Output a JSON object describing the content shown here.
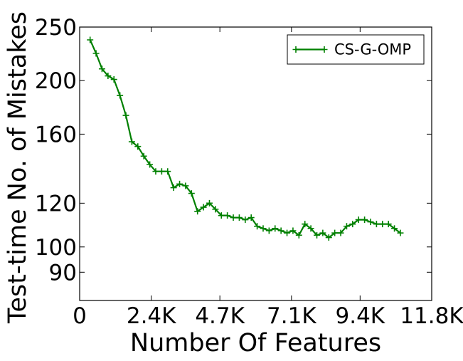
{
  "chart_data": {
    "type": "line",
    "title": "",
    "xlabel": "Number Of Features",
    "ylabel": "Test-time No. of Mistakes",
    "xlim": [
      0,
      11800
    ],
    "ylim": [
      80,
      250
    ],
    "x_scale": "linear",
    "y_scale": "log",
    "x_ticks": [
      0,
      2400,
      4700,
      7100,
      9400,
      11800
    ],
    "x_tick_labels": [
      "0",
      "2.4K",
      "4.7K",
      "7.1K",
      "9.4K",
      "11.8K"
    ],
    "y_ticks": [
      90,
      100,
      120,
      160,
      200,
      250
    ],
    "y_tick_labels": [
      "90",
      "100",
      "120",
      "160",
      "200",
      "250"
    ],
    "grid": false,
    "legend_position": "top-right",
    "series": [
      {
        "name": "CS-G-OMP",
        "color": "#008000",
        "marker": "plus",
        "x": [
          350,
          550,
          750,
          950,
          1150,
          1350,
          1550,
          1750,
          1950,
          2150,
          2350,
          2550,
          2750,
          2950,
          3150,
          3350,
          3550,
          3750,
          3950,
          4150,
          4350,
          4550,
          4750,
          4950,
          5150,
          5350,
          5550,
          5750,
          5950,
          6150,
          6350,
          6550,
          6750,
          6950,
          7150,
          7350,
          7550,
          7750,
          7950,
          8150,
          8350,
          8550,
          8750,
          8950,
          9150,
          9350,
          9550,
          9750,
          9950,
          10150,
          10350,
          10550,
          10750
        ],
        "values": [
          237,
          224,
          210,
          204,
          201,
          188,
          173,
          155,
          152,
          146,
          141,
          137,
          137,
          137,
          128,
          130,
          129,
          125,
          116,
          118,
          120,
          117,
          114,
          114,
          113,
          113,
          112,
          113,
          109,
          108,
          107,
          108,
          107,
          106,
          107,
          105,
          110,
          108,
          105,
          106,
          104,
          106,
          106,
          109,
          110,
          112,
          112,
          111,
          110,
          110,
          110,
          108,
          106
        ]
      }
    ]
  }
}
